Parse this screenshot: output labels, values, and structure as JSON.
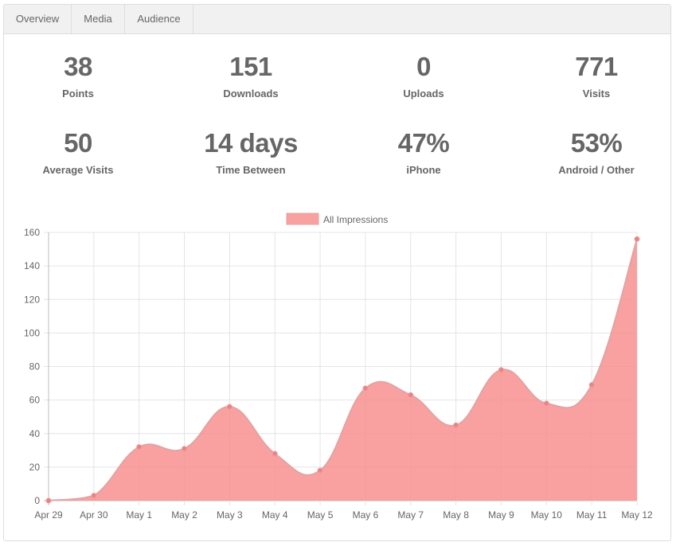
{
  "tabs": [
    {
      "label": "Overview",
      "active": true
    },
    {
      "label": "Media",
      "active": false
    },
    {
      "label": "Audience",
      "active": false
    }
  ],
  "stats_row1": [
    {
      "value": "38",
      "label": "Points"
    },
    {
      "value": "151",
      "label": "Downloads"
    },
    {
      "value": "0",
      "label": "Uploads"
    },
    {
      "value": "771",
      "label": "Visits"
    }
  ],
  "stats_row2": [
    {
      "value": "50",
      "label": "Average Visits"
    },
    {
      "value": "14 days",
      "label": "Time Between"
    },
    {
      "value": "47%",
      "label": "iPhone"
    },
    {
      "value": "53%",
      "label": "Android / Other"
    }
  ],
  "chart_data": {
    "type": "area",
    "categories": [
      "Apr 29",
      "Apr 30",
      "May 1",
      "May 2",
      "May 3",
      "May 4",
      "May 5",
      "May 6",
      "May 7",
      "May 8",
      "May 9",
      "May 10",
      "May 11",
      "May 12"
    ],
    "series": [
      {
        "name": "All Impressions",
        "values": [
          0,
          3,
          32,
          31,
          56,
          28,
          18,
          67,
          63,
          45,
          78,
          58,
          69,
          156
        ],
        "color": "#f7908f"
      }
    ],
    "ylim": [
      0,
      160
    ],
    "yticks": [
      0,
      20,
      40,
      60,
      80,
      100,
      120,
      140,
      160
    ],
    "grid": true,
    "legend_position": "top-center",
    "title": "",
    "xlabel": "",
    "ylabel": ""
  }
}
